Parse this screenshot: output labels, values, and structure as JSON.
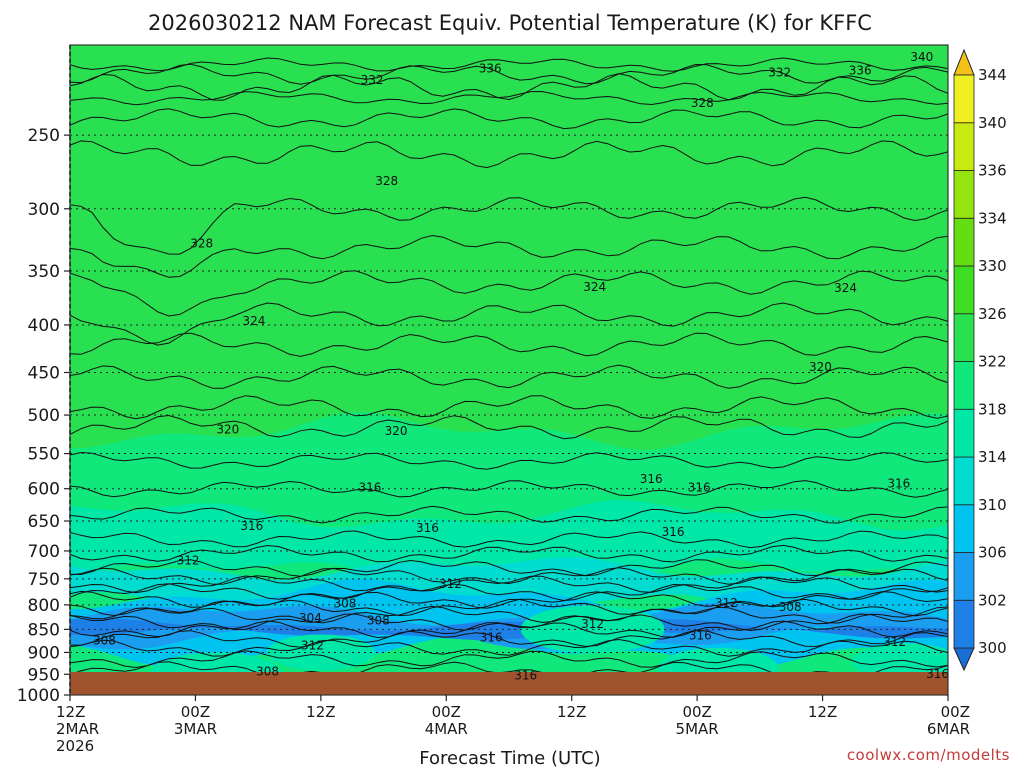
{
  "chart_data": {
    "type": "heatmap",
    "title": "2026030212 NAM Forecast Equiv. Potential Temperature (K) for KFFC",
    "xlabel": "Forecast Time (UTC)",
    "ylabel": "",
    "credit": "coolwx.com/modelts",
    "x_hours_range": [
      0,
      84
    ],
    "x_ticks": [
      {
        "hour": 0,
        "line1": "12Z",
        "line2": "2MAR",
        "line3": "2026"
      },
      {
        "hour": 12,
        "line1": "00Z",
        "line2": "3MAR",
        "line3": ""
      },
      {
        "hour": 24,
        "line1": "12Z",
        "line2": "",
        "line3": ""
      },
      {
        "hour": 36,
        "line1": "00Z",
        "line2": "4MAR",
        "line3": ""
      },
      {
        "hour": 48,
        "line1": "12Z",
        "line2": "",
        "line3": ""
      },
      {
        "hour": 60,
        "line1": "00Z",
        "line2": "5MAR",
        "line3": ""
      },
      {
        "hour": 72,
        "line1": "12Z",
        "line2": "",
        "line3": ""
      },
      {
        "hour": 84,
        "line1": "00Z",
        "line2": "6MAR",
        "line3": ""
      }
    ],
    "y_pressure_range": [
      200,
      1000
    ],
    "y_ticks": [
      250,
      300,
      350,
      400,
      450,
      500,
      550,
      600,
      650,
      700,
      750,
      800,
      850,
      900,
      950,
      1000
    ],
    "gridlines": "dotted at each pressure tick",
    "underground_fill": "#a0522d",
    "colorbar": {
      "levels": [
        300,
        302,
        306,
        310,
        314,
        318,
        322,
        326,
        330,
        334,
        336,
        340,
        344
      ],
      "colors": [
        "#1e7fe6",
        "#1b9ef0",
        "#00c4f0",
        "#00dcd0",
        "#00e8a8",
        "#10e87c",
        "#28e050",
        "#3ede22",
        "#64de12",
        "#94e410",
        "#c8ea10",
        "#f0f020"
      ],
      "extend": "both",
      "low_color": "#1a6fd6",
      "high_color": "#f2c21a"
    },
    "contour_labels": [
      {
        "text": "340",
        "hour": 81.5,
        "p": 206
      },
      {
        "text": "336",
        "hour": 40.2,
        "p": 212
      },
      {
        "text": "336",
        "hour": 75.6,
        "p": 213
      },
      {
        "text": "332",
        "hour": 28.9,
        "p": 218
      },
      {
        "text": "332",
        "hour": 67.9,
        "p": 214
      },
      {
        "text": "328",
        "hour": 60.5,
        "p": 231
      },
      {
        "text": "328",
        "hour": 30.3,
        "p": 280
      },
      {
        "text": "328",
        "hour": 12.6,
        "p": 327
      },
      {
        "text": "324",
        "hour": 50.2,
        "p": 364
      },
      {
        "text": "324",
        "hour": 74.2,
        "p": 365
      },
      {
        "text": "324",
        "hour": 17.6,
        "p": 396
      },
      {
        "text": "320",
        "hour": 71.8,
        "p": 444
      },
      {
        "text": "320",
        "hour": 15.1,
        "p": 518
      },
      {
        "text": "320",
        "hour": 31.2,
        "p": 520
      },
      {
        "text": "316",
        "hour": 55.6,
        "p": 586
      },
      {
        "text": "316",
        "hour": 60.2,
        "p": 598
      },
      {
        "text": "316",
        "hour": 79.3,
        "p": 592
      },
      {
        "text": "316",
        "hour": 28.7,
        "p": 598
      },
      {
        "text": "316",
        "hour": 17.4,
        "p": 658
      },
      {
        "text": "316",
        "hour": 34.2,
        "p": 661
      },
      {
        "text": "316",
        "hour": 57.7,
        "p": 668
      },
      {
        "text": "312",
        "hour": 11.3,
        "p": 717
      },
      {
        "text": "312",
        "hour": 36.4,
        "p": 760
      },
      {
        "text": "312",
        "hour": 62.8,
        "p": 796
      },
      {
        "text": "312",
        "hour": 50.0,
        "p": 839
      },
      {
        "text": "312",
        "hour": 23.2,
        "p": 885
      },
      {
        "text": "312",
        "hour": 78.9,
        "p": 877
      },
      {
        "text": "308",
        "hour": 26.3,
        "p": 797
      },
      {
        "text": "308",
        "hour": 68.9,
        "p": 804
      },
      {
        "text": "308",
        "hour": 29.5,
        "p": 832
      },
      {
        "text": "308",
        "hour": 3.3,
        "p": 874
      },
      {
        "text": "308",
        "hour": 18.9,
        "p": 944
      },
      {
        "text": "304",
        "hour": 23.0,
        "p": 826
      },
      {
        "text": "316",
        "hour": 40.3,
        "p": 867
      },
      {
        "text": "316",
        "hour": 60.3,
        "p": 863
      },
      {
        "text": "316",
        "hour": 43.6,
        "p": 953
      },
      {
        "text": "316",
        "hour": 83.0,
        "p": 949
      }
    ]
  }
}
